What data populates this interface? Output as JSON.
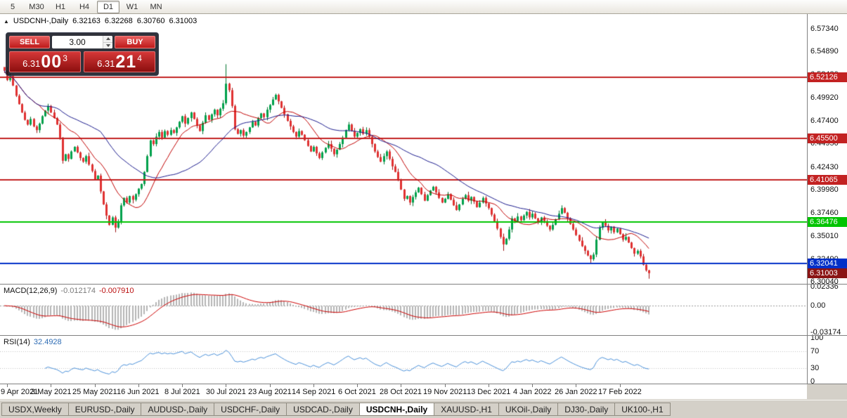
{
  "toolbar": {
    "periods": [
      "5",
      "M30",
      "H1",
      "H4",
      "D1",
      "W1",
      "MN"
    ],
    "active_period": "D1"
  },
  "chart_header": {
    "collapse_icon": "▲",
    "symbol": "USDCNH-,Daily",
    "open": "6.32163",
    "high": "6.32268",
    "low": "6.30760",
    "close": "6.31003"
  },
  "trade_panel": {
    "sell_label": "SELL",
    "buy_label": "BUY",
    "volume": "3.00",
    "sell_price": {
      "head": "6.31",
      "big": "00",
      "sup": "3"
    },
    "buy_price": {
      "head": "6.31",
      "big": "21",
      "sup": "4"
    }
  },
  "price_scale": {
    "labels": [
      "6.57340",
      "6.54890",
      "6.52430",
      "6.49920",
      "6.47400",
      "6.44950",
      "6.42430",
      "6.39980",
      "6.37460",
      "6.35010",
      "6.32490",
      "6.30040"
    ]
  },
  "levels": [
    {
      "price": 6.52126,
      "label": "6.52126",
      "color": "#c32222",
      "width": 2
    },
    {
      "price": 6.455,
      "label": "6.45500",
      "color": "#c32222",
      "width": 2
    },
    {
      "price": 6.41065,
      "label": "6.41065",
      "color": "#c32222",
      "width": 2
    },
    {
      "price": 6.36476,
      "label": "6.36476",
      "color": "#00c400",
      "width": 2
    },
    {
      "price": 6.32041,
      "label": "6.32041",
      "color": "#0030c8",
      "width": 2
    }
  ],
  "current_price": {
    "price": 6.31003,
    "label": "6.31003",
    "badge_color": "#8a1414"
  },
  "indicator_macd": {
    "name": "MACD(12,26,9)",
    "value_main": "-0.012174",
    "value_signal": "-0.007910",
    "scale_labels": [
      {
        "text": "0.02336",
        "value": 0.02336
      },
      {
        "text": "0.00",
        "value": 0.0
      },
      {
        "text": "-0.03174",
        "value": -0.03174
      }
    ]
  },
  "indicator_rsi": {
    "name": "RSI(14)",
    "value": "32.4928",
    "scale_labels": [
      {
        "text": "100",
        "value": 100
      },
      {
        "text": "70",
        "value": 70
      },
      {
        "text": "30",
        "value": 30
      },
      {
        "text": "0",
        "value": 0
      }
    ],
    "level_lines": [
      70,
      30
    ]
  },
  "chart_data": {
    "type": "candlestick",
    "title": "USDCNH-,Daily",
    "x_axis": {
      "tick_labels": [
        "9 Apr 2021",
        "3 May 2021",
        "25 May 2021",
        "16 Jun 2021",
        "8 Jul 2021",
        "30 Jul 2021",
        "23 Aug 2021",
        "14 Sep 2021",
        "6 Oct 2021",
        "28 Oct 2021",
        "19 Nov 2021",
        "13 Dec 2021",
        "4 Jan 2022",
        "26 Jan 2022",
        "17 Feb 2022"
      ],
      "tick_indices": [
        1,
        16,
        31,
        46,
        61,
        76,
        91,
        106,
        121,
        136,
        151,
        166,
        181,
        196,
        211
      ]
    },
    "y_axis": {
      "min": 6.2985,
      "max": 6.589
    },
    "closes": [
      6.528,
      6.518,
      6.523,
      6.512,
      6.501,
      6.492,
      6.483,
      6.475,
      6.47,
      6.476,
      6.468,
      6.464,
      6.471,
      6.479,
      6.485,
      6.49,
      6.483,
      6.477,
      6.47,
      6.456,
      6.431,
      6.438,
      6.433,
      6.441,
      6.446,
      6.44,
      6.434,
      6.43,
      6.436,
      6.427,
      6.42,
      6.411,
      6.415,
      6.398,
      6.384,
      6.372,
      6.362,
      6.37,
      6.359,
      6.366,
      6.383,
      6.391,
      6.386,
      6.393,
      6.389,
      6.395,
      6.401,
      6.406,
      6.419,
      6.436,
      6.453,
      6.449,
      6.457,
      6.462,
      6.456,
      6.463,
      6.459,
      6.464,
      6.461,
      6.467,
      6.473,
      6.479,
      6.471,
      6.477,
      6.483,
      6.476,
      6.469,
      6.463,
      6.472,
      6.48,
      6.475,
      6.481,
      6.486,
      6.48,
      6.487,
      6.493,
      6.514,
      6.507,
      6.49,
      6.465,
      6.46,
      6.464,
      6.458,
      6.462,
      6.467,
      6.473,
      6.469,
      6.477,
      6.482,
      6.478,
      6.486,
      6.491,
      6.497,
      6.502,
      6.495,
      6.488,
      6.481,
      6.474,
      6.468,
      6.462,
      6.457,
      6.463,
      6.459,
      6.453,
      6.447,
      6.441,
      6.446,
      6.439,
      6.434,
      6.44,
      6.445,
      6.449,
      6.444,
      6.438,
      6.443,
      6.449,
      6.456,
      6.464,
      6.47,
      6.463,
      6.457,
      6.461,
      6.465,
      6.46,
      6.464,
      6.457,
      6.449,
      6.441,
      6.435,
      6.43,
      6.436,
      6.441,
      6.433,
      6.425,
      6.419,
      6.411,
      6.4,
      6.39,
      6.393,
      6.386,
      6.392,
      6.397,
      6.402,
      6.395,
      6.388,
      6.394,
      6.399,
      6.403,
      6.397,
      6.391,
      6.386,
      6.39,
      6.395,
      6.389,
      6.383,
      6.378,
      6.384,
      6.39,
      6.394,
      6.388,
      6.392,
      6.387,
      6.381,
      6.386,
      6.391,
      6.385,
      6.38,
      6.373,
      6.366,
      6.358,
      6.349,
      6.341,
      6.347,
      6.357,
      6.369,
      6.366,
      6.371,
      6.367,
      6.372,
      6.376,
      6.37,
      6.374,
      6.369,
      6.365,
      6.37,
      6.366,
      6.361,
      6.357,
      6.362,
      6.368,
      6.374,
      6.38,
      6.375,
      6.369,
      6.363,
      6.357,
      6.351,
      6.345,
      6.339,
      6.334,
      6.329,
      6.325,
      6.33,
      6.346,
      6.359,
      6.365,
      6.361,
      6.356,
      6.36,
      6.354,
      6.358,
      6.352,
      6.346,
      6.349,
      6.343,
      6.337,
      6.331,
      6.334,
      6.328,
      6.319,
      6.313,
      6.31
    ],
    "wick_overrides": {
      "0": {
        "high": 6.531
      },
      "38": {
        "low": 6.354
      },
      "76": {
        "high": 6.535
      },
      "171": {
        "low": 6.334
      },
      "201": {
        "low": 6.321
      },
      "221": {
        "low": 6.304
      }
    },
    "overlays": {
      "ma_fast": {
        "period": 13,
        "color": "#c00000"
      },
      "ma_slow": {
        "period": 34,
        "color": "#1a1a8c"
      }
    },
    "up_color": "#00a14b",
    "down_color": "#e03131",
    "macd": {
      "fast": 12,
      "slow": 26,
      "signal": 9,
      "hist_color": "#b5b5b5",
      "signal_color": "#cc0000"
    },
    "rsi": {
      "period": 14,
      "color": "#4a90d9"
    }
  },
  "tabs": {
    "items": [
      "USDX,Weekly",
      "EURUSD-,Daily",
      "AUDUSD-,Daily",
      "USDCHF-,Daily",
      "USDCAD-,Daily",
      "USDCNH-,Daily",
      "XAUUSD-,H1",
      "UKOil-,Daily",
      "DJ30-,Daily",
      "UK100-,H1"
    ],
    "active_index": 5
  }
}
